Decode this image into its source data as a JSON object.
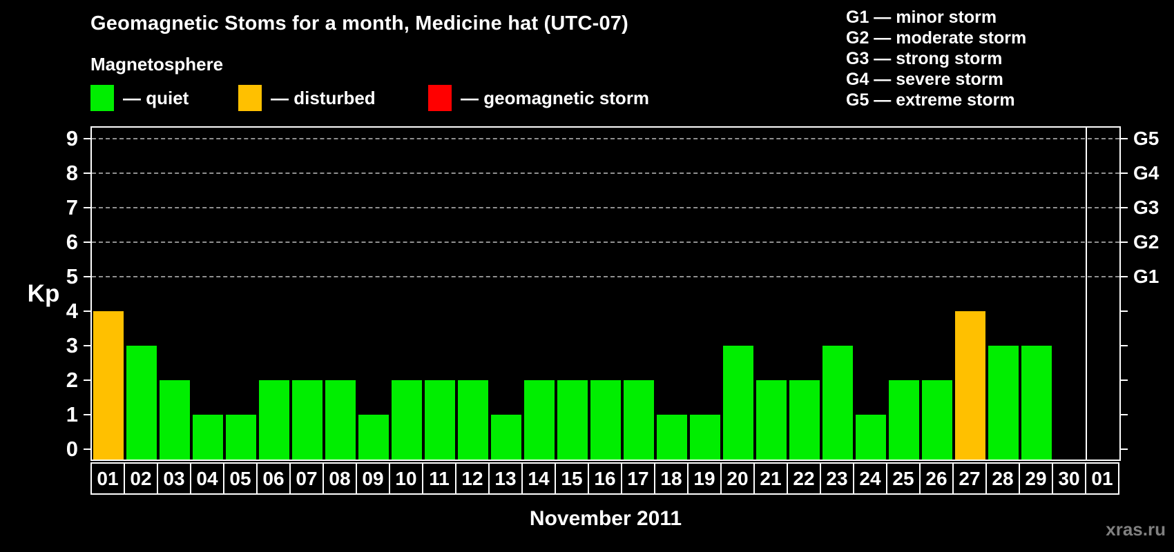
{
  "header": {
    "title": "Geomagnetic Stoms for a month, Medicine hat (UTC-07)",
    "subtitle": "Magnetosphere"
  },
  "legend": {
    "items": [
      {
        "name": "quiet",
        "label": "— quiet",
        "color": "#00EE00"
      },
      {
        "name": "disturbed",
        "label": "— disturbed",
        "color": "#FFC000"
      },
      {
        "name": "storm",
        "label": "— geomagnetic storm",
        "color": "#FF0000"
      }
    ]
  },
  "g_legend": {
    "items": [
      "G1 — minor storm",
      "G2 — moderate storm",
      "G3 — strong storm",
      "G4 — severe storm",
      "G5 — extreme storm"
    ]
  },
  "chart_data": {
    "type": "bar",
    "title": "Geomagnetic Stoms for a month, Medicine hat (UTC-07)",
    "xlabel": "November 2011",
    "ylabel": "Kp",
    "ylim": [
      0,
      9
    ],
    "yticks": [
      0,
      1,
      2,
      3,
      4,
      5,
      6,
      7,
      8,
      9
    ],
    "gridlines_at": [
      5,
      6,
      7,
      8,
      9
    ],
    "grid": "horizontal dashed at storm levels only",
    "legend_position": "top-left",
    "right_axis": {
      "labels": [
        "G1",
        "G2",
        "G3",
        "G4",
        "G5"
      ],
      "at": [
        5,
        6,
        7,
        8,
        9
      ]
    },
    "categories": [
      "01",
      "02",
      "03",
      "04",
      "05",
      "06",
      "07",
      "08",
      "09",
      "10",
      "11",
      "12",
      "13",
      "14",
      "15",
      "16",
      "17",
      "18",
      "19",
      "20",
      "21",
      "22",
      "23",
      "24",
      "25",
      "26",
      "27",
      "28",
      "29",
      "30",
      "01"
    ],
    "values": [
      4,
      3,
      2,
      1,
      1,
      2,
      2,
      2,
      1,
      2,
      2,
      2,
      1,
      2,
      2,
      2,
      2,
      1,
      1,
      3,
      2,
      2,
      3,
      1,
      2,
      2,
      4,
      3,
      3,
      0,
      0
    ],
    "statuses": [
      "disturbed",
      "quiet",
      "quiet",
      "quiet",
      "quiet",
      "quiet",
      "quiet",
      "quiet",
      "quiet",
      "quiet",
      "quiet",
      "quiet",
      "quiet",
      "quiet",
      "quiet",
      "quiet",
      "quiet",
      "quiet",
      "quiet",
      "quiet",
      "quiet",
      "quiet",
      "quiet",
      "quiet",
      "quiet",
      "quiet",
      "disturbed",
      "quiet",
      "quiet",
      "none",
      "none"
    ],
    "colors": {
      "quiet": "#00EE00",
      "disturbed": "#FFC000",
      "storm": "#FF0000"
    },
    "month_separator_after_index": 29
  },
  "watermark": "xras.ru"
}
